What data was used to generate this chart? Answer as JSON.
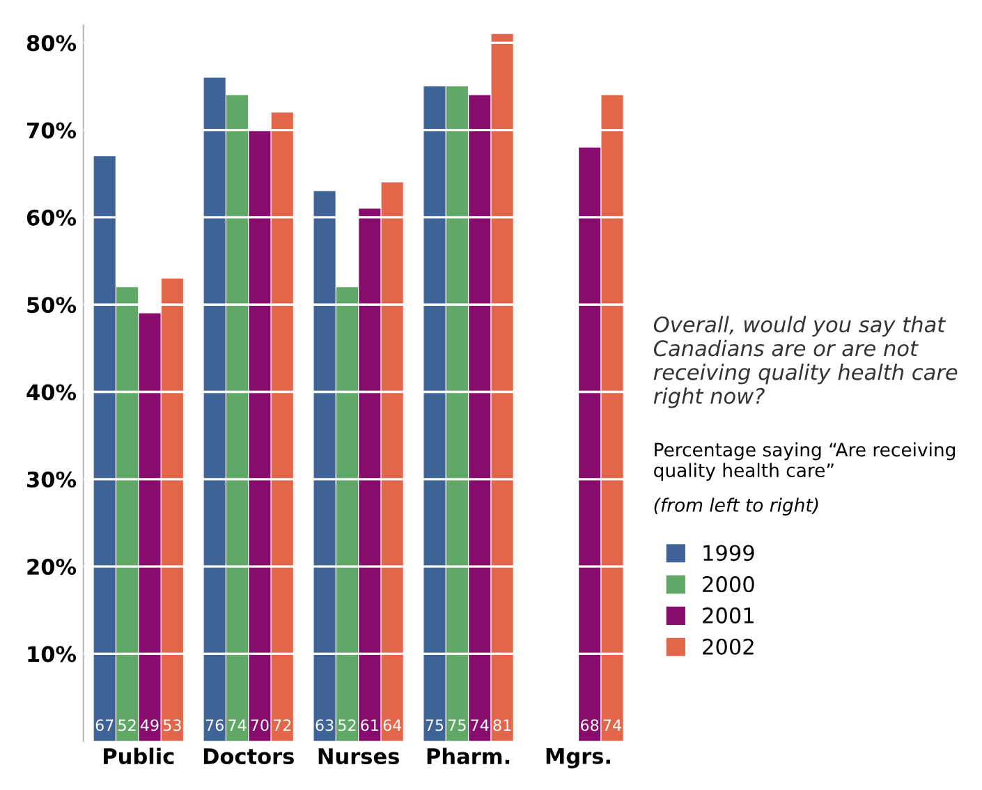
{
  "chart_data": {
    "type": "bar",
    "categories": [
      "Public",
      "Doctors",
      "Nurses",
      "Pharm.",
      "Mgrs."
    ],
    "series": [
      {
        "name": "1999",
        "color": "#3e6396",
        "values": [
          67,
          76,
          63,
          75,
          null
        ]
      },
      {
        "name": "2000",
        "color": "#5fa866",
        "values": [
          52,
          74,
          52,
          75,
          null
        ]
      },
      {
        "name": "2001",
        "color": "#880c6e",
        "values": [
          49,
          70,
          61,
          74,
          68
        ]
      },
      {
        "name": "2002",
        "color": "#e2664a",
        "values": [
          53,
          72,
          64,
          81,
          74
        ]
      }
    ],
    "ylim": [
      0,
      82
    ],
    "yticks": [
      {
        "value": 10,
        "label": "10%"
      },
      {
        "value": 20,
        "label": "20%"
      },
      {
        "value": 30,
        "label": "30%"
      },
      {
        "value": 40,
        "label": "40%"
      },
      {
        "value": 50,
        "label": "50%"
      },
      {
        "value": 60,
        "label": "60%"
      },
      {
        "value": 70,
        "label": "70%"
      },
      {
        "value": 80,
        "label": "80%"
      }
    ],
    "grid": "y",
    "data_labels": true,
    "legend": "right",
    "legend_title": "Percentage saying “Are receiving quality health care”",
    "annotations": [
      "Overall, would you say that Canadians are or are not receiving quality health care right now?",
      "(from left to right)"
    ]
  }
}
